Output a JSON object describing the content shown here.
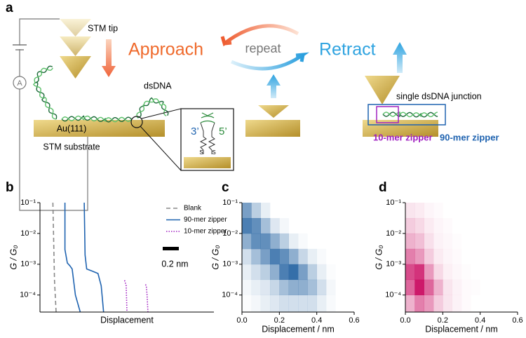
{
  "panel_labels": [
    "a",
    "b",
    "c",
    "d"
  ],
  "schematic": {
    "stm_tip": "STM tip",
    "approach": "Approach",
    "repeat": "repeat",
    "retract": "Retract",
    "dsdna": "dsDNA",
    "substrate_material": "Au(111)",
    "stm_substrate": "STM substrate",
    "ammeter": "A",
    "end_3": "3’",
    "end_5": "5’",
    "junction": "single dsDNA junction",
    "zipper_10": "10-mer zipper",
    "zipper_90": "90-mer zipper"
  },
  "chart_data": [
    {
      "type": "line",
      "xlabel": "Displacement",
      "ylabel": "G / G₀",
      "ylog": true,
      "xlim": [
        0,
        2.16
      ],
      "ylim": [
        2.8e-05,
        0.1
      ],
      "yticks": [
        {
          "value": 0.1,
          "label": "10⁻¹"
        },
        {
          "value": 0.01,
          "label": "10⁻²"
        },
        {
          "value": 0.001,
          "label": "10⁻³"
        },
        {
          "value": 0.0001,
          "label": "10⁻⁴"
        }
      ],
      "legend": "upper right",
      "scale_bar": {
        "value": 0.2,
        "label": "0.2 nm"
      },
      "series": [
        {
          "name": "Blank",
          "color": "#888888",
          "dash": "dashed",
          "x": [
            0.16,
            0.18,
            0.2
          ],
          "values": [
            0.1,
            0.0003,
            2.8e-05
          ]
        },
        {
          "name": "90-mer zipper",
          "color": "#1f63b0",
          "dash": "solid",
          "x": [
            0.31,
            0.31,
            0.34,
            0.37,
            0.4,
            0.44,
            0.5,
            null,
            0.55,
            0.56,
            0.58,
            0.65,
            0.72,
            0.76,
            0.79
          ],
          "values": [
            0.1,
            0.003,
            0.0011,
            0.0009,
            0.0007,
            0.0001,
            2.8e-05,
            null,
            0.1,
            0.002,
            0.0007,
            0.0006,
            0.0005,
            0.0002,
            2.8e-05
          ]
        },
        {
          "name": "10-mer zipper",
          "color": "#a020c0",
          "dash": "dotted",
          "x": [
            1.05,
            1.06,
            1.07,
            1.08,
            null,
            1.31,
            1.32,
            1.33,
            1.34
          ],
          "values": [
            0.0003,
            0.00025,
            0.0002,
            2.8e-05,
            null,
            0.00022,
            0.0002,
            0.0001,
            2.8e-05
          ]
        }
      ]
    },
    {
      "type": "heatmap",
      "xlabel": "Displacement / nm",
      "ylabel": "G / G₀",
      "ylog": true,
      "color": "#1f5fa0",
      "xlim": [
        0,
        0.6
      ],
      "ylim": [
        2.8e-05,
        0.1
      ],
      "xticks": [
        {
          "value": 0,
          "label": "0.0"
        },
        0.2,
        0.4,
        0.6
      ],
      "yticks": [
        {
          "value": 0.1,
          "label": "10⁻¹"
        },
        {
          "value": 0.01,
          "label": "10⁻²"
        },
        {
          "value": 0.001,
          "label": "10⁻³"
        },
        {
          "value": 0.0001,
          "label": "10⁻⁴"
        }
      ],
      "xbins": [
        0,
        0.05,
        0.1,
        0.15,
        0.2,
        0.25,
        0.3,
        0.35,
        0.4,
        0.45,
        0.5,
        0.55,
        0.6
      ],
      "ybins": [
        2.8e-05,
        0.0001,
        0.000316,
        0.001,
        0.00316,
        0.01,
        0.0316,
        0.1
      ],
      "density": [
        [
          0.02,
          0.05,
          0.1,
          0.15,
          0.2,
          0.2,
          0.2,
          0.2,
          0.1,
          0.03,
          0,
          0
        ],
        [
          0.05,
          0.1,
          0.15,
          0.25,
          0.4,
          0.5,
          0.5,
          0.4,
          0.2,
          0.05,
          0,
          0
        ],
        [
          0.1,
          0.2,
          0.3,
          0.5,
          0.8,
          0.9,
          0.6,
          0.3,
          0.1,
          0.02,
          0,
          0
        ],
        [
          0.2,
          0.4,
          0.6,
          0.8,
          0.7,
          0.5,
          0.25,
          0.1,
          0.03,
          0,
          0,
          0
        ],
        [
          0.5,
          0.7,
          0.7,
          0.5,
          0.3,
          0.1,
          0.03,
          0,
          0,
          0,
          0,
          0
        ],
        [
          0.8,
          0.7,
          0.4,
          0.15,
          0.05,
          0,
          0,
          0,
          0,
          0,
          0,
          0
        ],
        [
          0.6,
          0.3,
          0.1,
          0,
          0,
          0,
          0,
          0,
          0,
          0,
          0,
          0
        ]
      ]
    },
    {
      "type": "heatmap",
      "xlabel": "Displacement / nm",
      "ylabel": "G / G₀",
      "ylog": true,
      "color": "#c8005a",
      "xlim": [
        0,
        0.6
      ],
      "ylim": [
        2.8e-05,
        0.1
      ],
      "xticks": [
        {
          "value": 0,
          "label": "0.0"
        },
        0.2,
        0.4,
        0.6
      ],
      "yticks": [
        {
          "value": 0.1,
          "label": "10⁻¹"
        },
        {
          "value": 0.01,
          "label": "10⁻²"
        },
        {
          "value": 0.001,
          "label": "10⁻³"
        },
        {
          "value": 0.0001,
          "label": "10⁻⁴"
        }
      ],
      "xbins": [
        0,
        0.05,
        0.1,
        0.15,
        0.2,
        0.25,
        0.3,
        0.35,
        0.4,
        0.45,
        0.5,
        0.55,
        0.6
      ],
      "ybins": [
        2.8e-05,
        0.0001,
        0.000316,
        0.001,
        0.00316,
        0.01,
        0.0316,
        0.1
      ],
      "density": [
        [
          0.3,
          0.5,
          0.4,
          0.2,
          0.1,
          0.05,
          0.02,
          0,
          0,
          0,
          0,
          0
        ],
        [
          0.6,
          0.9,
          0.6,
          0.3,
          0.1,
          0.05,
          0.02,
          0.01,
          0,
          0,
          0,
          0
        ],
        [
          0.7,
          0.8,
          0.4,
          0.15,
          0.06,
          0.03,
          0.01,
          0,
          0,
          0,
          0,
          0
        ],
        [
          0.5,
          0.4,
          0.2,
          0.08,
          0.04,
          0.02,
          0,
          0,
          0,
          0,
          0,
          0
        ],
        [
          0.3,
          0.25,
          0.12,
          0.05,
          0.03,
          0.01,
          0,
          0,
          0,
          0,
          0,
          0
        ],
        [
          0.2,
          0.15,
          0.08,
          0.04,
          0.02,
          0,
          0,
          0,
          0,
          0,
          0,
          0
        ],
        [
          0.1,
          0.08,
          0.04,
          0.02,
          0,
          0,
          0,
          0,
          0,
          0,
          0,
          0
        ]
      ]
    }
  ]
}
